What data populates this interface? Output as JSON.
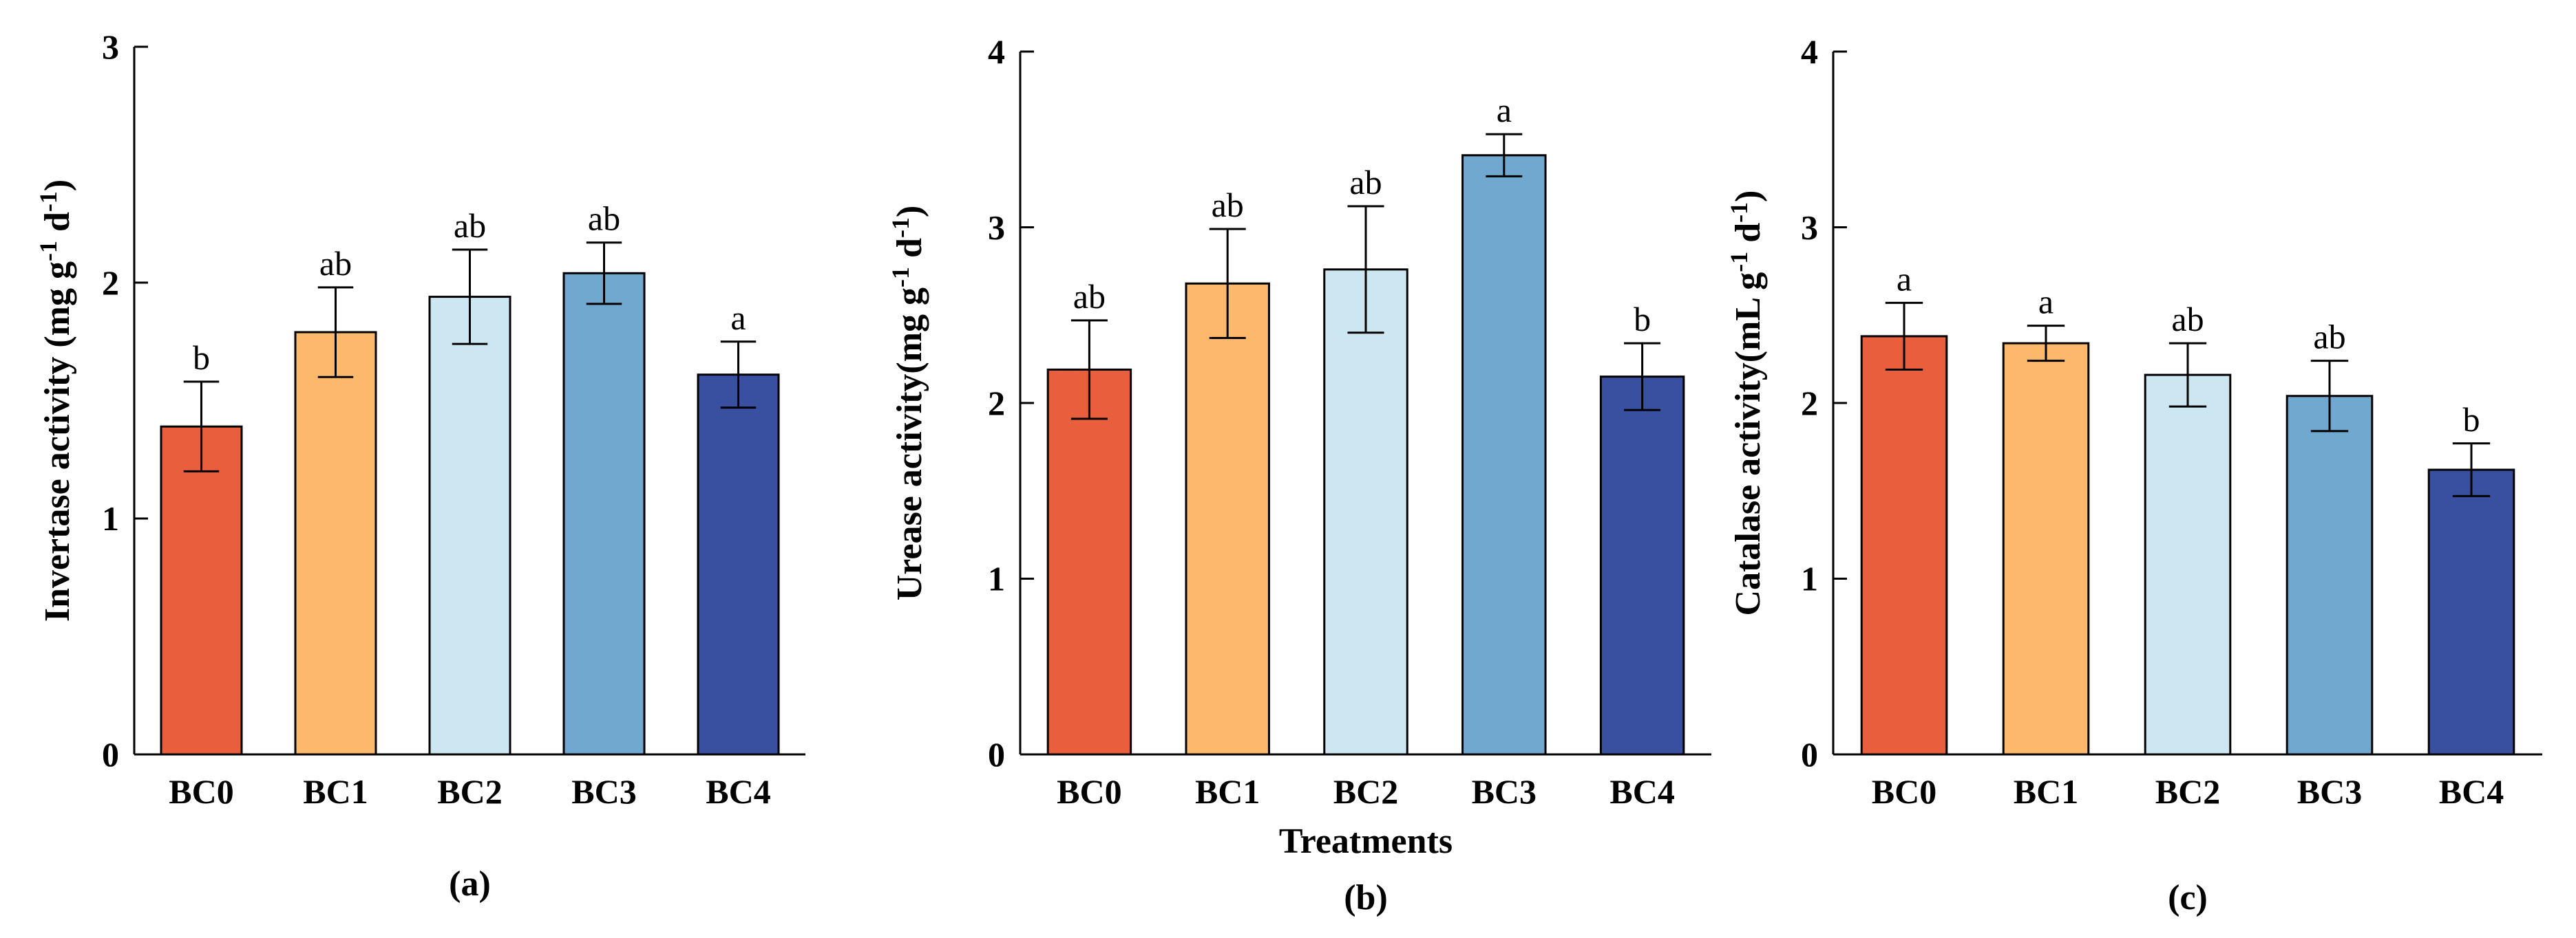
{
  "chart_data": [
    {
      "type": "bar",
      "panel_label": "(a)",
      "categories": [
        "BC0",
        "BC1",
        "BC2",
        "BC3",
        "BC4"
      ],
      "values": [
        1.39,
        1.79,
        1.94,
        2.04,
        1.61
      ],
      "errors": [
        0.19,
        0.19,
        0.2,
        0.13,
        0.14
      ],
      "letters": [
        "b",
        "ab",
        "ab",
        "ab",
        "a"
      ],
      "colors": [
        "#E95E3D",
        "#FDB96B",
        "#CCE7F2",
        "#71A8CF",
        "#394F9F"
      ],
      "ylabel": {
        "main": "Invertase activity (mg g",
        "sup1": "-1",
        "mid": " d",
        "sup2": "-1",
        "end": ")"
      },
      "ylim": [
        0,
        3
      ],
      "yticks": [
        "0",
        "1",
        "2",
        "3"
      ],
      "xlabel": ""
    },
    {
      "type": "bar",
      "panel_label": "(b)",
      "categories": [
        "BC0",
        "BC1",
        "BC2",
        "BC3",
        "BC4"
      ],
      "values": [
        2.19,
        2.68,
        2.76,
        3.41,
        2.15
      ],
      "errors": [
        0.28,
        0.31,
        0.36,
        0.12,
        0.19
      ],
      "letters": [
        "ab",
        "ab",
        "ab",
        "a",
        "b"
      ],
      "colors": [
        "#E95E3D",
        "#FDB96B",
        "#CCE7F2",
        "#71A8CF",
        "#394F9F"
      ],
      "ylabel": {
        "main": "Urease activity(mg g",
        "sup1": "-1",
        "mid": " d",
        "sup2": "-1",
        "end": ")"
      },
      "ylim": [
        0,
        4
      ],
      "yticks": [
        "0",
        "1",
        "2",
        "3",
        "4"
      ],
      "xlabel": "Treatments"
    },
    {
      "type": "bar",
      "panel_label": "(c)",
      "categories": [
        "BC0",
        "BC1",
        "BC2",
        "BC3",
        "BC4"
      ],
      "values": [
        2.38,
        2.34,
        2.16,
        2.04,
        1.62
      ],
      "errors": [
        0.19,
        0.1,
        0.18,
        0.2,
        0.15
      ],
      "letters": [
        "a",
        "a",
        "ab",
        "ab",
        "b"
      ],
      "colors": [
        "#E95E3D",
        "#FDB96B",
        "#CCE7F2",
        "#71A8CF",
        "#394F9F"
      ],
      "ylabel": {
        "main": "Catalase activity(mL g",
        "sup1": "-1",
        "mid": " d",
        "sup2": "-1",
        "end": ")"
      },
      "ylim": [
        0,
        4
      ],
      "yticks": [
        "0",
        "1",
        "2",
        "3",
        "4"
      ],
      "xlabel": ""
    }
  ]
}
